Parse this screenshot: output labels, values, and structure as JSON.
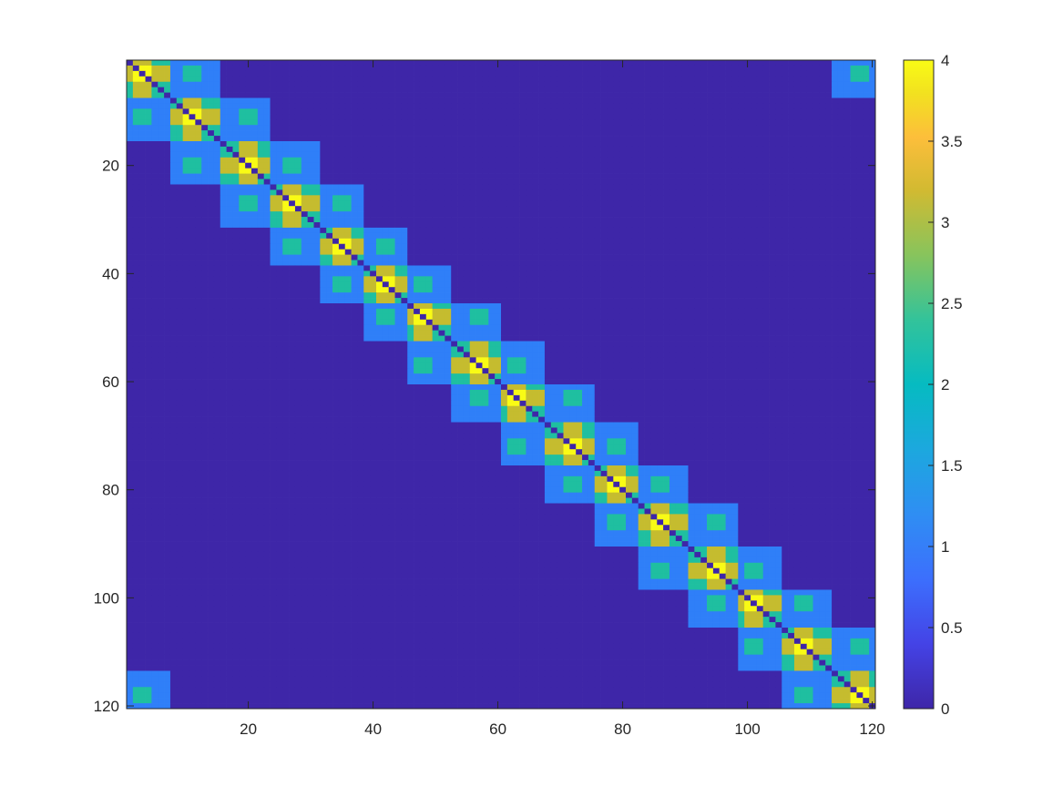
{
  "chart_data": {
    "type": "heatmap",
    "title": "",
    "xlabel": "",
    "ylabel": "",
    "matrix_size": 120,
    "xlim": [
      0.5,
      120.5
    ],
    "ylim": [
      0.5,
      120.5
    ],
    "y_direction": "reverse",
    "x_ticks": [
      20,
      40,
      60,
      80,
      100,
      120
    ],
    "x_tick_labels": [
      "20",
      "40",
      "60",
      "80",
      "100",
      "120"
    ],
    "y_ticks": [
      20,
      40,
      60,
      80,
      100,
      120
    ],
    "y_tick_labels": [
      "20",
      "40",
      "60",
      "80",
      "100",
      "120"
    ],
    "colorbar": {
      "location": "right",
      "limits": [
        0,
        4
      ],
      "ticks": [
        0,
        0.5,
        1,
        1.5,
        2,
        2.5,
        3,
        3.5,
        4
      ],
      "tick_labels": [
        "0",
        "0.5",
        "1",
        "1.5",
        "2",
        "2.5",
        "3",
        "3.5",
        "4"
      ]
    },
    "colormap": "parula",
    "color_levels": {
      "0": "#3e26a8",
      "1": "#2f7ff8",
      "2": "#1fbfa0",
      "3": "#c5bc2f",
      "4": "#f9fb15"
    },
    "structure": "symmetric matrix, banded with periodic wrap-around corner blocks; entries in {0,1,2,3,4}",
    "block_centers": [
      3,
      11,
      20,
      27,
      35,
      42,
      48,
      57,
      63,
      72,
      79,
      86,
      95,
      101,
      109,
      118
    ],
    "block_half_width": 4,
    "main_diagonal_value": 0
  }
}
